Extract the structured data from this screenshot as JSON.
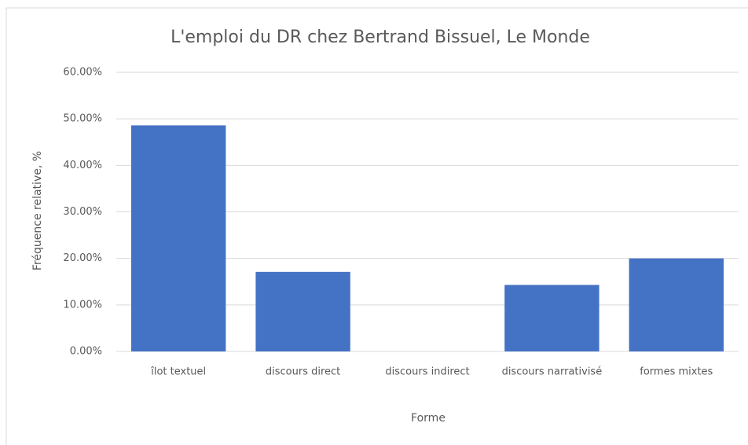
{
  "chart_data": {
    "type": "bar",
    "title": "L'emploi du DR chez Bertrand Bissuel, Le Monde",
    "x_label": "Forme",
    "y_label": "Fréquence relative, %",
    "categories": [
      "îlot textuel",
      "discours direct",
      "discours indirect",
      "discours narrativisé",
      "formes mixtes"
    ],
    "values": [
      48.6,
      17.1,
      0,
      14.3,
      20.0
    ],
    "color": "#4472c4",
    "ylim": [
      0,
      60
    ],
    "yticks": [
      {
        "value": 0,
        "label": "0.00%"
      },
      {
        "value": 10,
        "label": "10.00%"
      },
      {
        "value": 20,
        "label": "20.00%"
      },
      {
        "value": 30,
        "label": "30.00%"
      },
      {
        "value": 40,
        "label": "40.00%"
      },
      {
        "value": 50,
        "label": "50.00%"
      },
      {
        "value": 60,
        "label": "60.00%"
      }
    ],
    "grid": true
  }
}
